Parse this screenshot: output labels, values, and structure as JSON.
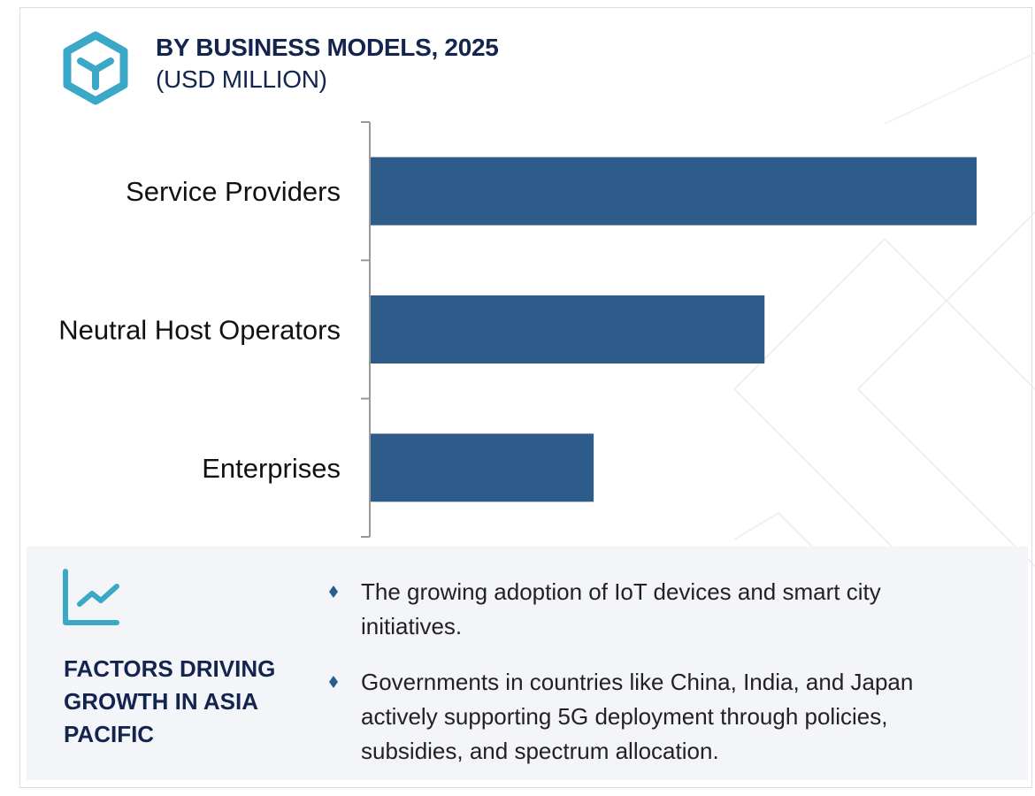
{
  "header": {
    "title": "BY BUSINESS MODELS, 2025",
    "subtitle": "(USD MILLION)",
    "icon": "hexagon-y-logo-icon"
  },
  "chart_data": {
    "type": "bar",
    "orientation": "horizontal",
    "title": "BY BUSINESS MODELS, 2025",
    "subtitle": "(USD MILLION)",
    "categories": [
      "Service Providers",
      "Neutral Host Operators",
      "Enterprises"
    ],
    "values": [
      100,
      65,
      36.8
    ],
    "xlim": [
      0,
      100
    ],
    "grid": false,
    "legend": "none",
    "bar_color": "#2d5c8a"
  },
  "factors": {
    "icon": "trend-line-chart-icon",
    "heading": "FACTORS DRIVING GROWTH IN ASIA PACIFIC",
    "bullets": [
      "The growing adoption of IoT devices and smart city initiatives.",
      "Governments in countries like China, India, and Japan actively supporting 5G deployment through policies, subsidies, and spectrum allocation."
    ]
  },
  "colors": {
    "heading": "#13254f",
    "accent": "#3aa8c6",
    "bar": "#2d5c8a",
    "panel": "#f3f5f9"
  }
}
